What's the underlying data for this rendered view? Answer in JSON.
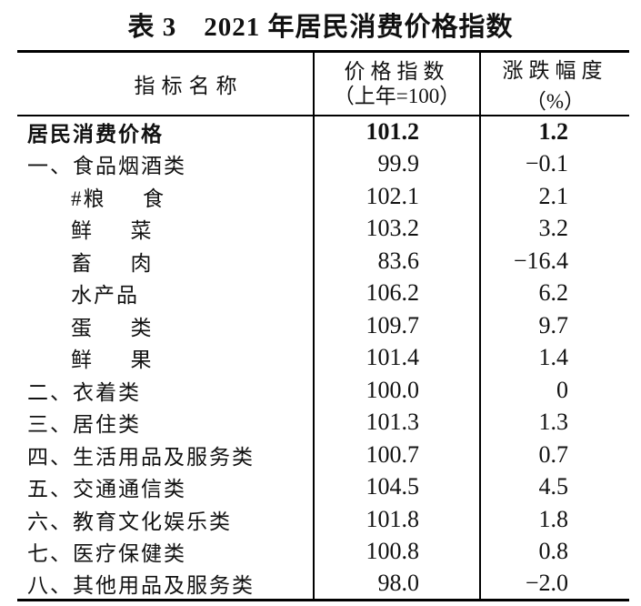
{
  "page": {
    "background_color": "#ffffff",
    "text_color": "#111111",
    "border_color": "#000000"
  },
  "title": "表 3　2021 年居民消费价格指数",
  "table": {
    "header": {
      "name": "指标名称",
      "index_line1": "价格指数",
      "index_line2": "（上年=100）",
      "change": "涨跌幅度",
      "change_unit": "（%）"
    },
    "rows": [
      {
        "name": "居民消费价格",
        "index": "101.2",
        "change": "1.2"
      },
      {
        "name": "一、食品烟酒类",
        "index": "99.9",
        "change": "−0.1"
      },
      {
        "name": "#粮　  食",
        "index": "102.1",
        "change": "2.1"
      },
      {
        "name": "鲜　  菜",
        "index": "103.2",
        "change": "3.2"
      },
      {
        "name": "畜　  肉",
        "index": "83.6",
        "change": "−16.4"
      },
      {
        "name": "水产品",
        "index": "106.2",
        "change": "6.2"
      },
      {
        "name": "蛋　  类",
        "index": "109.7",
        "change": "9.7"
      },
      {
        "name": "鲜　  果",
        "index": "101.4",
        "change": "1.4"
      },
      {
        "name": "二、衣着类",
        "index": "100.0",
        "change": "0"
      },
      {
        "name": "三、居住类",
        "index": "101.3",
        "change": "1.3"
      },
      {
        "name": "四、生活用品及服务类",
        "index": "100.7",
        "change": "0.7"
      },
      {
        "name": "五、交通通信类",
        "index": "104.5",
        "change": "4.5"
      },
      {
        "name": "六、教育文化娱乐类",
        "index": "101.8",
        "change": "1.8"
      },
      {
        "name": "七、医疗保健类",
        "index": "100.8",
        "change": "0.8"
      },
      {
        "name": "八、其他用品及服务类",
        "index": "98.0",
        "change": "−2.0"
      }
    ]
  }
}
